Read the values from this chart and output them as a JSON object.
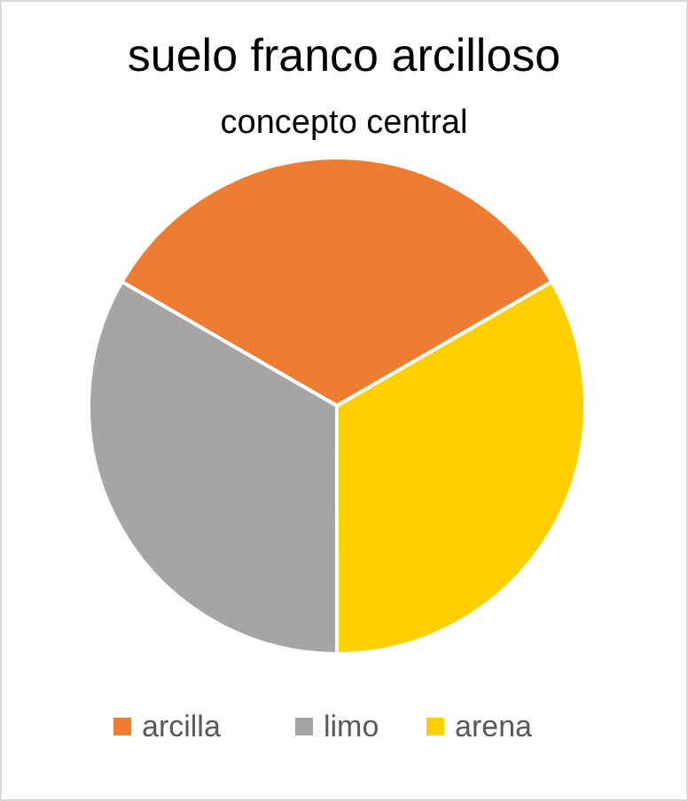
{
  "chart_data": {
    "type": "pie",
    "title": "suelo franco arcilloso",
    "subtitle": "concepto central",
    "categories": [
      "arcilla",
      "limo",
      "arena"
    ],
    "values": [
      33.34,
      33.33,
      33.33
    ],
    "colors": [
      "#ed7d31",
      "#a5a5a5",
      "#ffd000"
    ],
    "legend": "bottom"
  }
}
